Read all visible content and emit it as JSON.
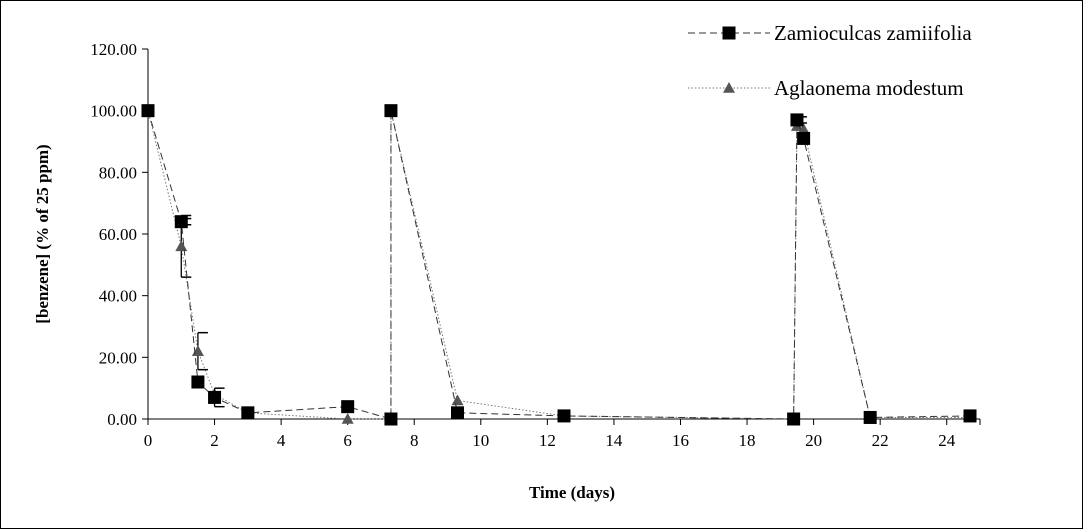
{
  "chart_data": {
    "type": "line",
    "title": "",
    "xlabel": "Time (days)",
    "ylabel": "[benzene] (% of 25 ppm)",
    "xlim": [
      0,
      25
    ],
    "ylim": [
      0,
      120
    ],
    "x_ticks": [
      "0",
      "2",
      "4",
      "6",
      "8",
      "10",
      "12",
      "14",
      "16",
      "18",
      "20",
      "22",
      "24"
    ],
    "y_ticks": [
      "0.00",
      "20.00",
      "40.00",
      "60.00",
      "80.00",
      "100.00",
      "120.00"
    ],
    "grid": false,
    "legend": "top-right",
    "series": [
      {
        "name": "Zamioculcas zamiifolia",
        "marker": "square",
        "line_style": "dashed",
        "color": "#000000",
        "x": [
          0,
          1,
          1.5,
          2,
          3,
          6,
          7.3,
          7.3,
          9.3,
          12.5,
          19.4,
          19.5,
          19.7,
          21.7,
          24.7
        ],
        "y": [
          100,
          64,
          12,
          7,
          2,
          4,
          0,
          100,
          2,
          1,
          0,
          97,
          91,
          0.5,
          1
        ],
        "error": [
          0,
          1,
          0,
          3,
          0,
          0,
          0,
          0,
          0,
          0,
          0,
          1,
          0,
          0,
          0
        ]
      },
      {
        "name": "Aglaonema modestum",
        "marker": "triangle",
        "line_style": "dotted",
        "color": "#555555",
        "x": [
          0,
          1,
          1.5,
          2,
          3,
          6,
          7.3,
          7.3,
          9.3,
          12.5,
          19.4,
          19.5,
          19.7,
          21.7,
          24.7
        ],
        "y": [
          100,
          56,
          22,
          8,
          2,
          0,
          0,
          100,
          6,
          1,
          0,
          95,
          94,
          0.5,
          0.5
        ],
        "error": [
          0,
          10,
          6,
          0,
          0,
          0,
          0,
          0,
          0,
          0,
          0,
          0,
          0,
          0,
          0
        ]
      }
    ]
  }
}
